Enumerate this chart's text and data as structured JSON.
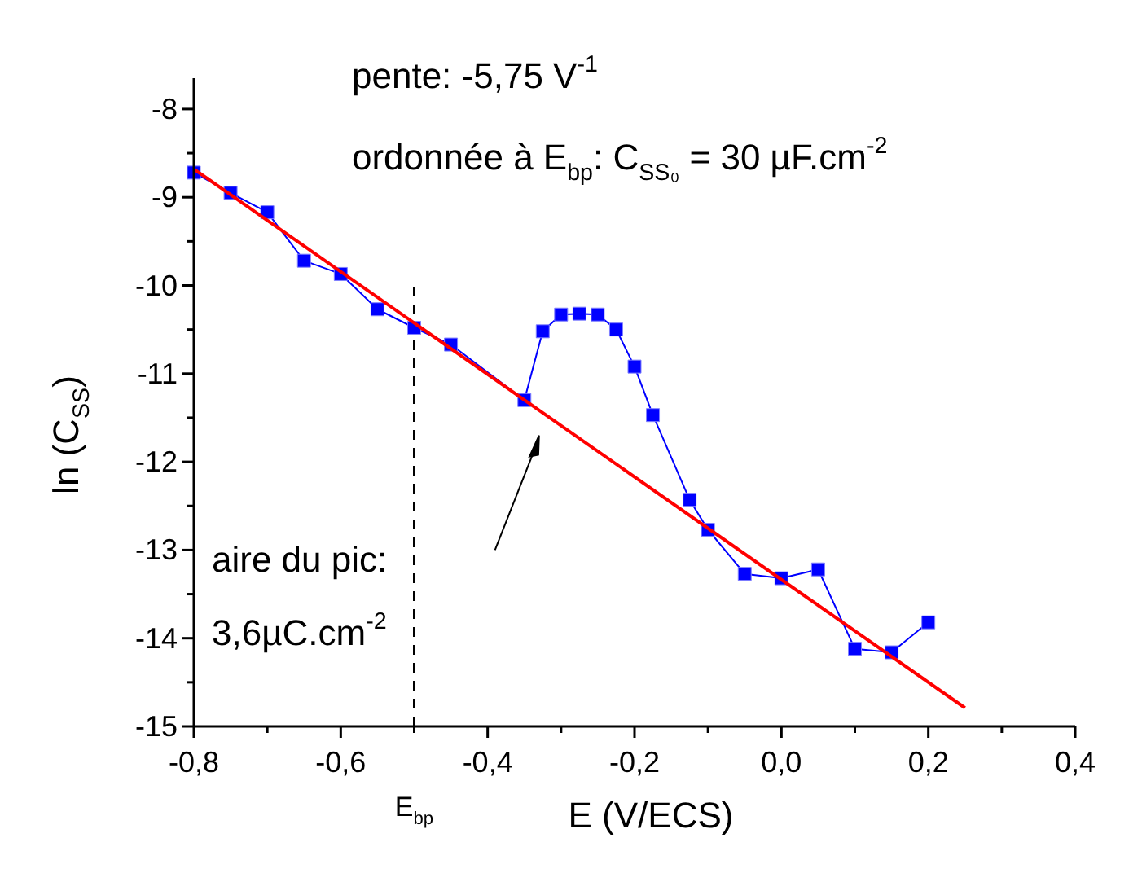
{
  "chart_data": {
    "type": "line",
    "xlabel": "E (V/ECS)",
    "ylabel": "ln (C$_{SS}$)",
    "xlim": [
      -0.8,
      0.4
    ],
    "ylim": [
      -15,
      -7.65
    ],
    "xticks": [
      {
        "value": -0.8,
        "label": "-0,8"
      },
      {
        "value": -0.7,
        "label": null
      },
      {
        "value": -0.6,
        "label": "-0,6"
      },
      {
        "value": -0.5,
        "label": null
      },
      {
        "value": -0.4,
        "label": "-0,4"
      },
      {
        "value": -0.3,
        "label": null
      },
      {
        "value": -0.2,
        "label": "-0,2"
      },
      {
        "value": -0.1,
        "label": null
      },
      {
        "value": 0,
        "label": "0,0"
      },
      {
        "value": 0.1,
        "label": null
      },
      {
        "value": 0.2,
        "label": "0,2"
      },
      {
        "value": 0.3,
        "label": null
      },
      {
        "value": 0.4,
        "label": "0,4"
      }
    ],
    "yticks": [
      -15,
      {
        "value": -14.5,
        "label": null
      },
      -14,
      {
        "value": -13.5,
        "label": null
      },
      -13,
      {
        "value": -12.5,
        "label": null
      },
      -12,
      {
        "value": -11.5,
        "label": null
      },
      -11,
      {
        "value": -10.5,
        "label": null
      },
      -10,
      {
        "value": -9.5,
        "label": null
      },
      -9,
      {
        "value": -8.5,
        "label": null
      },
      -8
    ],
    "series": [
      {
        "color": "#0000ff",
        "marker": "square",
        "x": [
          -0.8,
          -0.75,
          -0.7,
          -0.65,
          -0.6,
          -0.55,
          -0.5,
          -0.45,
          -0.35,
          -0.325,
          -0.3,
          -0.275,
          -0.25,
          -0.225,
          -0.2,
          -0.175,
          -0.125,
          -0.1,
          -0.05,
          0,
          0.05,
          0.1,
          0.15,
          0.2
        ],
        "values": [
          -8.72,
          -8.95,
          -9.17,
          -9.72,
          -9.87,
          -10.27,
          -10.48,
          -10.67,
          -11.3,
          -10.52,
          -10.33,
          -10.32,
          -10.33,
          -10.5,
          -10.92,
          -11.47,
          -12.43,
          -12.77,
          -13.27,
          -13.32,
          -13.22,
          -14.12,
          -14.16,
          -13.82
        ]
      },
      {
        "color": "#ff0000",
        "marker": "none",
        "x": [
          -0.8,
          0.25
        ],
        "values": [
          -8.68,
          -14.79
        ]
      }
    ],
    "ref_lines": [
      {
        "axis": "x",
        "value": -0.5,
        "label": "E$_{bp}$",
        "line_style": "dashed",
        "color": "#000000"
      }
    ],
    "annotations": [
      "pente: -5,75 V$^{-1}$",
      "ordonnée à E$_{bp}$: C$_{SS₀}$ = 30 µF.cm$^{-2}$",
      "aire du pic:",
      "3,6µC.cm$^{-2}$"
    ]
  }
}
